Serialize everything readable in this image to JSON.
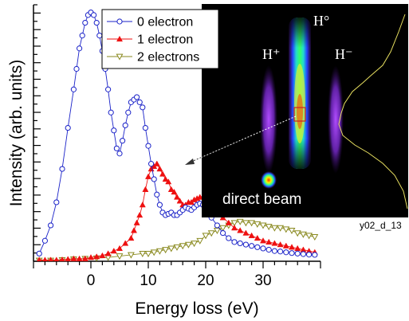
{
  "chart_data": {
    "type": "line",
    "xlabel": "Energy loss (eV)",
    "ylabel": "Intensity (arb. units)",
    "xlim": [
      -10,
      40
    ],
    "ylim": [
      0,
      100
    ],
    "x_ticks": [
      0,
      10,
      20,
      30
    ],
    "y_tick_labels": "none",
    "grid": false,
    "legend_position": "top",
    "series": [
      {
        "name": "0 electron",
        "color": "#1a22c8",
        "marker": "circle-open",
        "x": [
          -9,
          -8,
          -7,
          -6,
          -5,
          -4,
          -3,
          -2.5,
          -2,
          -1.5,
          -1,
          -0.5,
          0,
          0.5,
          1,
          1.5,
          2,
          2.5,
          3,
          3.5,
          4,
          4.5,
          5,
          5.5,
          6,
          6.5,
          7,
          7.5,
          8,
          8.5,
          9,
          9.5,
          10,
          10.5,
          11,
          11.5,
          12,
          12.5,
          13,
          13.5,
          14,
          14.5,
          15,
          15.5,
          16,
          16.5,
          17,
          17.5,
          18,
          18.5,
          19,
          19.5,
          20,
          21,
          22,
          23,
          24,
          25,
          26,
          27,
          28,
          29,
          30,
          31,
          32,
          33,
          34,
          35,
          36,
          37,
          38,
          39
        ],
        "y": [
          3,
          8,
          14,
          23,
          36,
          52,
          67,
          75,
          83,
          88,
          93,
          96,
          97,
          96,
          93,
          88,
          82,
          75,
          67,
          58,
          51,
          44,
          42,
          47,
          53,
          58,
          62,
          63,
          64,
          62,
          60,
          52,
          45,
          38,
          32,
          26,
          22,
          19,
          18,
          18.5,
          19,
          18,
          18,
          19,
          20,
          21,
          20.5,
          20,
          21,
          22,
          22.5,
          22,
          20,
          17,
          14,
          11,
          9,
          7.5,
          7,
          6.5,
          6,
          5.5,
          5,
          4.5,
          4,
          3.8,
          3.5,
          3.2,
          3,
          2.8,
          2.6,
          2.5
        ]
      },
      {
        "name": "1 electron",
        "color": "#ee1010",
        "marker": "triangle-up-filled",
        "x": [
          -9,
          -8,
          -7,
          -6,
          -5,
          -4,
          -3,
          -2,
          -1,
          0,
          1,
          2,
          3,
          4,
          5,
          6,
          7,
          7.5,
          8,
          8.5,
          9,
          9.5,
          10,
          10.5,
          11,
          11.5,
          12,
          12.5,
          13,
          13.5,
          14,
          14.5,
          15,
          15.5,
          16,
          16.5,
          17,
          17.5,
          18,
          18.5,
          19,
          19.5,
          20,
          20.5,
          21,
          21.5,
          22,
          23,
          24,
          25,
          26,
          27,
          28,
          29,
          30,
          31,
          32,
          33,
          34,
          35,
          36,
          37,
          38,
          39
        ],
        "y": [
          0.5,
          0.5,
          0.5,
          0.5,
          0.6,
          0.8,
          1,
          1,
          1,
          1.5,
          1.8,
          2.2,
          3,
          4,
          5,
          7,
          9,
          12,
          15,
          18,
          22,
          28,
          33,
          36,
          37,
          38,
          36,
          34,
          32,
          31,
          28,
          27,
          25,
          23.5,
          22,
          22,
          23,
          23,
          24,
          24.5,
          25,
          25,
          24,
          23,
          22,
          21,
          19,
          17,
          15,
          13,
          12,
          11,
          10,
          9,
          8,
          7.5,
          7,
          6.5,
          6,
          5.5,
          5,
          4.5,
          4,
          3.5
        ]
      },
      {
        "name": "2 electrons",
        "color": "#8a8a20",
        "marker": "triangle-down-open",
        "x": [
          -9,
          -7,
          -5,
          -3,
          -1,
          1,
          3,
          5,
          7,
          9,
          10,
          11,
          12,
          13,
          14,
          15,
          16,
          17,
          18,
          19,
          20,
          21,
          22,
          23,
          24,
          25,
          26,
          27,
          28,
          29,
          30,
          31,
          32,
          33,
          34,
          35,
          36,
          37,
          38,
          39
        ],
        "y": [
          0.3,
          0.3,
          0.5,
          0.8,
          1,
          1.2,
          1.5,
          2,
          2.5,
          3,
          3,
          3.5,
          4,
          4.5,
          5,
          5.5,
          6,
          6.5,
          7,
          8,
          10,
          11,
          12,
          13,
          14,
          15,
          15.5,
          15,
          15,
          14.5,
          14,
          13.5,
          13,
          13,
          12.5,
          12,
          11,
          10.5,
          10,
          9.5
        ]
      }
    ]
  },
  "inset": {
    "labels": {
      "h_plus": "H⁺",
      "h_zero": "H°",
      "h_minus": "H⁻",
      "direct_beam": "direct beam"
    }
  },
  "caption": "y02_d_13"
}
